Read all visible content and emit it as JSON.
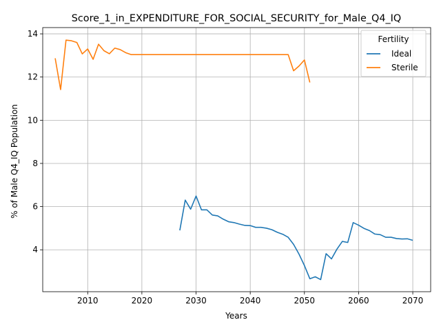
{
  "chart_data": {
    "type": "line",
    "title": "Score_1_in_EXPENDITURE_FOR_SOCIAL_SECURITY_for_Male_Q4_IQ",
    "xlabel": "Years",
    "ylabel": "% of Male Q4_IQ Population",
    "xlim": [
      2001.7,
      2073.3
    ],
    "ylim": [
      2.06,
      14.29
    ],
    "xticks": [
      2010,
      2020,
      2030,
      2040,
      2050,
      2060,
      2070
    ],
    "yticks": [
      4,
      6,
      8,
      10,
      12,
      14
    ],
    "grid": true,
    "legend": {
      "title": "Fertility",
      "placement": "top-right"
    },
    "series": [
      {
        "name": "Ideal",
        "color": "#1f77b4",
        "x": [
          2027,
          2028,
          2029,
          2030,
          2031,
          2032,
          2033,
          2034,
          2035,
          2036,
          2037,
          2038,
          2039,
          2040,
          2041,
          2042,
          2043,
          2044,
          2045,
          2046,
          2047,
          2048,
          2049,
          2050,
          2051,
          2052,
          2053,
          2054,
          2055,
          2056,
          2057,
          2058,
          2059,
          2060,
          2061,
          2062,
          2063,
          2064,
          2065,
          2066,
          2067,
          2068,
          2069,
          2070
        ],
        "y": [
          4.9,
          6.3,
          5.88,
          6.49,
          5.85,
          5.85,
          5.61,
          5.57,
          5.42,
          5.3,
          5.26,
          5.19,
          5.13,
          5.12,
          5.04,
          5.04,
          5.0,
          4.93,
          4.81,
          4.72,
          4.58,
          4.25,
          3.8,
          3.27,
          2.66,
          2.75,
          2.62,
          3.82,
          3.58,
          4.03,
          4.39,
          4.34,
          5.26,
          5.14,
          4.99,
          4.89,
          4.73,
          4.7,
          4.58,
          4.58,
          4.52,
          4.5,
          4.51,
          4.44
        ]
      },
      {
        "name": "Sterile",
        "color": "#ff7f0e",
        "x": [
          2004,
          2005,
          2006,
          2007,
          2008,
          2009,
          2010,
          2011,
          2012,
          2013,
          2014,
          2015,
          2016,
          2017,
          2018,
          2019,
          2020,
          2021,
          2022,
          2023,
          2024,
          2025,
          2026,
          2027,
          2028,
          2029,
          2030,
          2031,
          2032,
          2033,
          2034,
          2035,
          2036,
          2037,
          2038,
          2039,
          2040,
          2041,
          2042,
          2043,
          2044,
          2045,
          2046,
          2047,
          2048,
          2049,
          2050,
          2051
        ],
        "y": [
          12.87,
          11.42,
          13.71,
          13.68,
          13.6,
          13.07,
          13.3,
          12.82,
          13.52,
          13.22,
          13.08,
          13.34,
          13.27,
          13.13,
          13.04,
          13.04,
          13.04,
          13.04,
          13.04,
          13.04,
          13.04,
          13.04,
          13.04,
          13.04,
          13.04,
          13.04,
          13.04,
          13.04,
          13.04,
          13.04,
          13.04,
          13.04,
          13.04,
          13.04,
          13.04,
          13.04,
          13.04,
          13.04,
          13.04,
          13.04,
          13.04,
          13.04,
          13.04,
          13.04,
          12.29,
          12.51,
          12.79,
          11.75
        ]
      }
    ]
  }
}
